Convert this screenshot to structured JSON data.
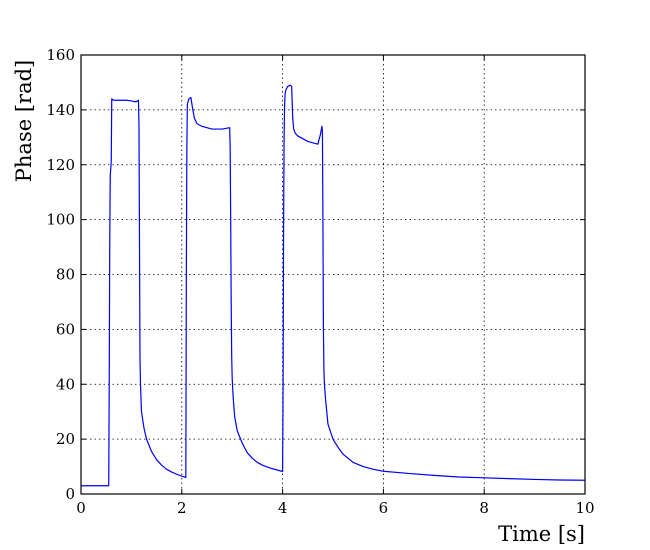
{
  "chart_data": {
    "type": "line",
    "title": "",
    "xlabel": "Time [s]",
    "ylabel": "Phase [rad]",
    "xlim": [
      0,
      10
    ],
    "ylim": [
      0,
      160
    ],
    "xticks": [
      0,
      2,
      4,
      6,
      8,
      10
    ],
    "yticks": [
      0,
      20,
      40,
      60,
      80,
      100,
      120,
      140,
      160
    ],
    "xtick_labels": [
      "0",
      "2",
      "4",
      "6",
      "8",
      "10"
    ],
    "ytick_labels": [
      "0",
      "20",
      "40",
      "60",
      "80",
      "100",
      "120",
      "140",
      "160"
    ],
    "grid": true,
    "series": [
      {
        "color": "#0000ff",
        "x": [
          0.0,
          0.54,
          0.55,
          0.56,
          0.57,
          0.58,
          0.6,
          0.61,
          0.65,
          0.7,
          0.8,
          0.9,
          1.0,
          1.05,
          1.1,
          1.14,
          1.15,
          1.16,
          1.17,
          1.18,
          1.2,
          1.25,
          1.3,
          1.4,
          1.5,
          1.6,
          1.7,
          1.8,
          1.9,
          2.0,
          2.05,
          2.08,
          2.09,
          2.1,
          2.11,
          2.14,
          2.18,
          2.21,
          2.25,
          2.3,
          2.35,
          2.4,
          2.5,
          2.6,
          2.8,
          2.95,
          2.96,
          2.97,
          2.98,
          2.99,
          3.0,
          3.02,
          3.05,
          3.1,
          3.2,
          3.3,
          3.4,
          3.5,
          3.6,
          3.7,
          3.8,
          3.9,
          4.0,
          4.01,
          4.02,
          4.03,
          4.04,
          4.05,
          4.07,
          4.1,
          4.15,
          4.18,
          4.2,
          4.22,
          4.25,
          4.3,
          4.4,
          4.5,
          4.6,
          4.7,
          4.72,
          4.75,
          4.77,
          4.78,
          4.79,
          4.8,
          4.81,
          4.82,
          4.83,
          4.85,
          4.9,
          5.0,
          5.1,
          5.2,
          5.4,
          5.6,
          5.8,
          6.0,
          6.5,
          7.0,
          7.5,
          8.0,
          8.5,
          9.0,
          9.5,
          10.0
        ],
        "y": [
          3,
          3,
          3,
          40,
          90,
          116,
          121,
          144,
          143.5,
          143.5,
          143.5,
          143.5,
          143.3,
          143,
          143,
          143.5,
          135,
          95,
          50,
          40,
          30,
          24,
          20,
          15.5,
          12.5,
          10.5,
          9,
          8,
          7.2,
          6.5,
          6.2,
          6,
          80,
          125,
          142,
          144,
          144.5,
          141,
          137,
          135,
          134.5,
          134,
          133.5,
          133,
          133,
          133.5,
          126,
          100,
          70,
          50,
          42,
          35,
          28,
          23,
          18.5,
          15,
          13,
          11.5,
          10.5,
          9.8,
          9.2,
          8.7,
          8.2,
          40,
          100,
          130,
          142,
          146,
          147.5,
          148.5,
          149,
          148.5,
          137,
          133,
          131.5,
          130.5,
          129.5,
          128.5,
          128,
          127.5,
          129,
          131,
          133,
          134,
          132,
          100,
          60,
          45,
          40,
          35,
          25.5,
          20,
          17,
          14.5,
          11.5,
          10,
          9,
          8.3,
          7.5,
          6.8,
          6.2,
          5.9,
          5.6,
          5.3,
          5.1,
          5
        ]
      }
    ]
  }
}
